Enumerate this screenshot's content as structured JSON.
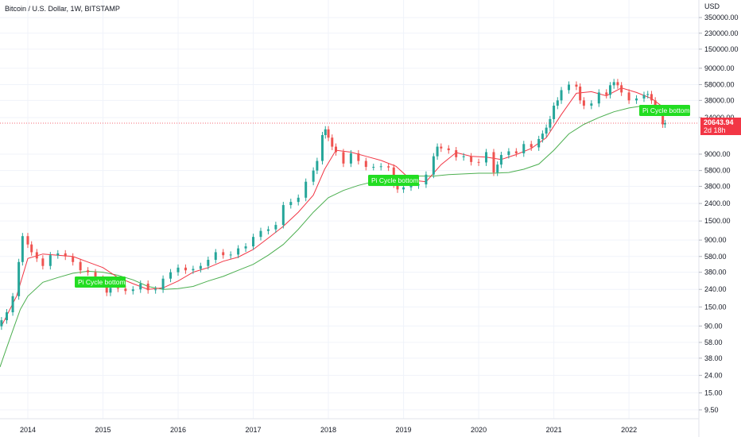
{
  "header": {
    "title": "Bitcoin / U.S. Dollar, 1W, BITSTAMP",
    "currency": "USD"
  },
  "price_badge": {
    "price": "20643.94",
    "countdown": "2d 18h",
    "color": "#f23645"
  },
  "colors": {
    "up": "#26a69a",
    "down": "#ef5350",
    "ma_red": "#f23645",
    "ma_green": "#4caf50",
    "signal": "#22dd22"
  },
  "signals": [
    "Pi Cycle bottom",
    "Pi Cycle bottom",
    "Pi Cycle bottom"
  ],
  "chart_data": {
    "type": "line",
    "scale": "log",
    "ylim": [
      7.5,
      560000
    ],
    "xlim": [
      2013.63,
      2022.93
    ],
    "y_ticks": [
      350000,
      230000,
      150000,
      90000,
      58000,
      38000,
      24000,
      9000,
      5800,
      3800,
      2400,
      1500,
      900,
      580,
      380,
      240,
      150,
      90,
      58,
      38,
      24,
      15,
      9.5
    ],
    "y_tick_labels": [
      "350000.00",
      "230000.00",
      "150000.00",
      "90000.00",
      "58000.00",
      "38000.00",
      "24000.00",
      "9000.00",
      "5800.00",
      "3800.00",
      "2400.00",
      "1500.00",
      "900.00",
      "580.00",
      "380.00",
      "240.00",
      "150.00",
      "90.00",
      "58.00",
      "38.00",
      "24.00",
      "15.00",
      "9.50"
    ],
    "x_ticks": [
      2014,
      2015,
      2016,
      2017,
      2018,
      2019,
      2020,
      2021,
      2022
    ],
    "x_tick_labels": [
      "2014",
      "2015",
      "2016",
      "2017",
      "2018",
      "2019",
      "2020",
      "2021",
      "2022"
    ],
    "current_price": 20643.94,
    "series": [
      {
        "style": "candles",
        "x": [
          2013.65,
          2013.72,
          2013.8,
          2013.88,
          2013.93,
          2014.0,
          2014.05,
          2014.12,
          2014.2,
          2014.3,
          2014.4,
          2014.5,
          2014.6,
          2014.7,
          2014.8,
          2014.9,
          2015.0,
          2015.05,
          2015.1,
          2015.2,
          2015.3,
          2015.4,
          2015.5,
          2015.6,
          2015.7,
          2015.8,
          2015.9,
          2016.0,
          2016.1,
          2016.2,
          2016.3,
          2016.4,
          2016.5,
          2016.6,
          2016.7,
          2016.8,
          2016.9,
          2017.0,
          2017.1,
          2017.2,
          2017.3,
          2017.4,
          2017.5,
          2017.6,
          2017.7,
          2017.8,
          2017.85,
          2017.92,
          2017.96,
          2018.0,
          2018.05,
          2018.1,
          2018.2,
          2018.3,
          2018.4,
          2018.5,
          2018.6,
          2018.7,
          2018.8,
          2018.87,
          2018.92,
          2019.0,
          2019.1,
          2019.2,
          2019.3,
          2019.4,
          2019.45,
          2019.5,
          2019.6,
          2019.7,
          2019.8,
          2019.9,
          2020.0,
          2020.1,
          2020.2,
          2020.25,
          2020.3,
          2020.4,
          2020.5,
          2020.6,
          2020.7,
          2020.8,
          2020.85,
          2020.9,
          2020.95,
          2021.0,
          2021.05,
          2021.1,
          2021.2,
          2021.3,
          2021.35,
          2021.4,
          2021.5,
          2021.6,
          2021.7,
          2021.75,
          2021.8,
          2021.85,
          2021.9,
          2022.0,
          2022.1,
          2022.2,
          2022.25,
          2022.3,
          2022.35,
          2022.4,
          2022.45,
          2022.48
        ],
        "close": [
          105,
          130,
          200,
          500,
          1000,
          800,
          650,
          550,
          450,
          600,
          630,
          580,
          500,
          400,
          380,
          320,
          280,
          220,
          250,
          245,
          230,
          240,
          280,
          235,
          240,
          320,
          380,
          430,
          400,
          415,
          450,
          530,
          650,
          600,
          610,
          720,
          760,
          980,
          1150,
          1200,
          1350,
          2300,
          2500,
          2800,
          4300,
          5800,
          7500,
          15000,
          17500,
          14000,
          11000,
          9500,
          7000,
          9200,
          7500,
          6400,
          6400,
          6500,
          6300,
          4000,
          3500,
          3700,
          3900,
          4000,
          5200,
          8500,
          11000,
          10500,
          10000,
          8300,
          8500,
          7300,
          7200,
          9500,
          5500,
          6800,
          8800,
          9700,
          9200,
          11800,
          10800,
          13500,
          15600,
          18300,
          23000,
          33000,
          38000,
          50000,
          58000,
          55000,
          38000,
          33000,
          35000,
          47000,
          44000,
          57000,
          62000,
          57000,
          47000,
          38000,
          40000,
          44000,
          45000,
          38000,
          30000,
          30000,
          20000,
          20643.94
        ]
      },
      {
        "name": "",
        "style": "line",
        "color": "#f23645",
        "x": [
          2013.65,
          2013.85,
          2014.0,
          2014.2,
          2014.4,
          2014.6,
          2014.8,
          2015.0,
          2015.2,
          2015.4,
          2015.6,
          2015.8,
          2016.0,
          2016.2,
          2016.4,
          2016.6,
          2016.8,
          2017.0,
          2017.2,
          2017.4,
          2017.6,
          2017.8,
          2017.95,
          2018.1,
          2018.3,
          2018.5,
          2018.7,
          2018.9,
          2019.1,
          2019.3,
          2019.5,
          2019.7,
          2019.9,
          2020.1,
          2020.3,
          2020.5,
          2020.7,
          2020.9,
          2021.1,
          2021.3,
          2021.5,
          2021.7,
          2021.9,
          2022.1,
          2022.3,
          2022.48
        ],
        "values": [
          90,
          200,
          550,
          620,
          600,
          580,
          500,
          430,
          330,
          280,
          240,
          250,
          300,
          380,
          430,
          510,
          570,
          700,
          950,
          1300,
          1900,
          3000,
          6000,
          10000,
          9500,
          8500,
          7600,
          6500,
          4500,
          4300,
          6800,
          9400,
          8500,
          8300,
          7800,
          8900,
          10500,
          14000,
          26000,
          46000,
          48000,
          43000,
          53000,
          47000,
          40000,
          30500
        ]
      },
      {
        "name": "",
        "style": "line",
        "color": "#4caf50",
        "x": [
          2013.63,
          2013.7,
          2013.8,
          2013.9,
          2014.0,
          2014.2,
          2014.4,
          2014.6,
          2014.8,
          2015.0,
          2015.2,
          2015.4,
          2015.6,
          2015.8,
          2016.0,
          2016.2,
          2016.4,
          2016.6,
          2016.8,
          2017.0,
          2017.2,
          2017.4,
          2017.6,
          2017.8,
          2018.0,
          2018.2,
          2018.4,
          2018.6,
          2018.8,
          2019.0,
          2019.2,
          2019.4,
          2019.6,
          2019.8,
          2020.0,
          2020.2,
          2020.4,
          2020.6,
          2020.8,
          2021.0,
          2021.2,
          2021.4,
          2021.6,
          2021.8,
          2022.0,
          2022.2,
          2022.35,
          2022.48
        ],
        "values": [
          30,
          45,
          80,
          140,
          200,
          290,
          330,
          370,
          390,
          380,
          350,
          310,
          260,
          240,
          245,
          260,
          300,
          340,
          400,
          470,
          600,
          800,
          1200,
          1900,
          2800,
          3400,
          3900,
          4300,
          4700,
          4800,
          5000,
          5000,
          5200,
          5300,
          5400,
          5400,
          5500,
          6000,
          6900,
          10000,
          15500,
          20000,
          24000,
          28000,
          31000,
          33000,
          33500,
          33000
        ]
      }
    ]
  }
}
